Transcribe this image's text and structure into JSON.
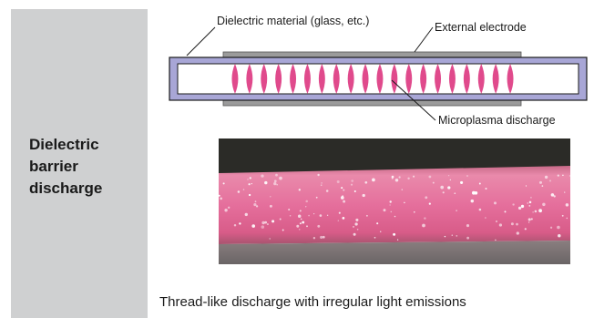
{
  "side_panel": {
    "title": "Dielectric\nbarrier\ndischarge"
  },
  "diagram": {
    "label_dielectric": "Dielectric material (glass, etc.)",
    "label_electrode": "External electrode",
    "label_microplasma": "Microplasma discharge",
    "colors": {
      "tube_fill": "#a8a6d6",
      "tube_stroke": "#1a1a1a",
      "electrode": "#9b9b9b",
      "plasma": "#e04a8c"
    }
  },
  "photo": {
    "icon": "plasma-photo",
    "colors": {
      "glow": "#e77fa5",
      "top": "#2a2a27",
      "bottom": "#6f6a6b"
    }
  },
  "caption": "Thread-like discharge with irregular light emissions"
}
